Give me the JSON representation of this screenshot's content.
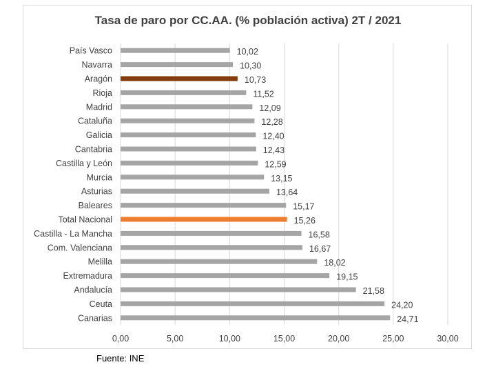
{
  "chart_data": {
    "type": "bar",
    "orientation": "horizontal",
    "title": "Tasa de paro por CC.AA. (% población activa) 2T / 2021",
    "xlabel": "",
    "ylabel": "",
    "xlim": [
      0,
      30
    ],
    "xticks": [
      "0,00",
      "5,00",
      "10,00",
      "15,00",
      "20,00",
      "25,00",
      "30,00"
    ],
    "grid": "vertical",
    "colors": {
      "default": "#a5a5a5",
      "Aragón": "#843c0c",
      "Total Nacional": "#ed7d31"
    },
    "categories": [
      "País Vasco",
      "Navarra",
      "Aragón",
      "Rioja",
      "Madrid",
      "Cataluña",
      "Galicia",
      "Cantabria",
      "Castilla y León",
      "Murcia",
      "Asturias",
      "Baleares",
      "Total Nacional",
      "Castilla - La Mancha",
      "Com. Valenciana",
      "Melilla",
      "Extremadura",
      "Andalucía",
      "Ceuta",
      "Canarias"
    ],
    "values": [
      10.02,
      10.3,
      10.73,
      11.52,
      12.09,
      12.28,
      12.4,
      12.43,
      12.59,
      13.15,
      13.64,
      15.17,
      15.26,
      16.58,
      16.67,
      18.02,
      19.15,
      21.58,
      24.2,
      24.71
    ],
    "value_labels": [
      "10,02",
      "10,30",
      "10,73",
      "11,52",
      "12,09",
      "12,28",
      "12,40",
      "12,43",
      "12,59",
      "13,15",
      "13,64",
      "15,17",
      "15,26",
      "16,58",
      "16,67",
      "18,02",
      "19,15",
      "21,58",
      "24,20",
      "24,71"
    ]
  },
  "footer": {
    "source": "Fuente: INE"
  }
}
